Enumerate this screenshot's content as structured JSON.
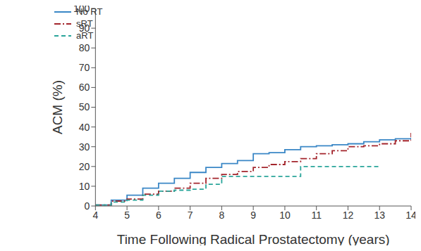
{
  "chart_data": {
    "type": "line",
    "x_label": "Time Following Radical Prostatectomy (years)",
    "y_label": "ACM (%)",
    "x": [
      4,
      4.5,
      5,
      5.5,
      6,
      6.5,
      7,
      7.5,
      8,
      8.5,
      9,
      9.5,
      10,
      10.5,
      11,
      11.5,
      12,
      12.5,
      13,
      13.5,
      14
    ],
    "series": [
      {
        "name": "No RT",
        "color": "#3a87c6",
        "line_style": "solid",
        "values": [
          0.5,
          3,
          5.5,
          9,
          11.5,
          14,
          17,
          19.5,
          21.5,
          23,
          26.5,
          27,
          28.5,
          30,
          30.5,
          31,
          31.5,
          32.5,
          33.5,
          34,
          34.5
        ]
      },
      {
        "name": "sRT",
        "color": "#a3252c",
        "line_style": "dashdot",
        "values": [
          0.5,
          2.5,
          3.5,
          6,
          7.5,
          9,
          11.5,
          14,
          16,
          17.5,
          19.5,
          21,
          22.5,
          24,
          26.5,
          28,
          30,
          30.5,
          31.5,
          33,
          37
        ]
      },
      {
        "name": "aRT",
        "color": "#2aa59a",
        "line_style": "dashed",
        "values": [
          0.5,
          2,
          3,
          5.5,
          7.5,
          8,
          8.5,
          11,
          15,
          15,
          15,
          15,
          15,
          20,
          20,
          20,
          20,
          20,
          20,
          null,
          null
        ]
      }
    ],
    "xlim": [
      4,
      14
    ],
    "xticks": [
      4,
      5,
      6,
      7,
      8,
      9,
      10,
      11,
      12,
      13,
      14
    ],
    "ylim": [
      0,
      100
    ],
    "yticks": [
      0,
      10,
      20,
      30,
      40,
      50,
      60,
      70,
      80,
      90,
      100
    ],
    "grid": false,
    "legend": "upper left"
  }
}
